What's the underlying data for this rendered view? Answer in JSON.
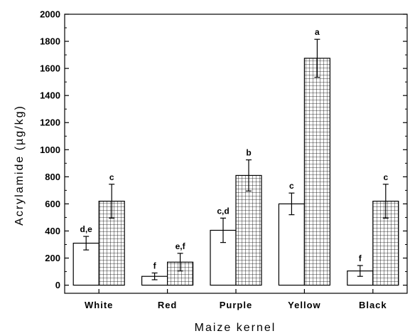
{
  "chart_data": {
    "type": "bar",
    "xlabel": "Maize kernel",
    "ylabel": "Acrylamide (µg/kg)",
    "categories": [
      "White",
      "Red",
      "Purple",
      "Yellow",
      "Black"
    ],
    "ylim": [
      -60,
      2000
    ],
    "yticks": [
      0,
      200,
      400,
      600,
      800,
      1000,
      1200,
      1400,
      1600,
      1800,
      2000
    ],
    "grid": false,
    "legend": "none",
    "series": [
      {
        "fill": "open",
        "values": [
          310,
          65,
          405,
          600,
          105
        ],
        "errors": [
          50,
          25,
          90,
          80,
          40
        ],
        "labels": [
          "d,e",
          "f",
          "c,d",
          "c",
          "f"
        ]
      },
      {
        "fill": "grid-hatch",
        "values": [
          620,
          170,
          810,
          1675,
          620
        ],
        "errors": [
          125,
          65,
          115,
          140,
          125
        ],
        "labels": [
          "c",
          "e,f",
          "b",
          "a",
          "c"
        ]
      }
    ]
  }
}
